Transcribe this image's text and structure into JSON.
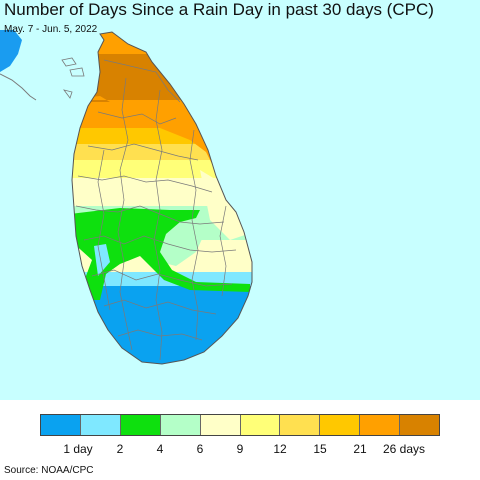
{
  "title": "Number of Days Since a Rain Day in past 30 days (CPC)",
  "subtitle": "May. 7 - Jun. 5, 2022",
  "source": "Source: NOAA/CPC",
  "map": {
    "ocean_color": "#c8ffff",
    "land_outside_color": "#1a9cf0",
    "boundary_color": "#7a7a7a"
  },
  "legend": {
    "colors": [
      "#0aa2f0",
      "#7fe8ff",
      "#0ee00e",
      "#b4ffc8",
      "#ffffc8",
      "#ffff78",
      "#ffe050",
      "#ffc800",
      "#ffa000",
      "#d88200"
    ],
    "labels": [
      "1 day",
      "2",
      "4",
      "6",
      "9",
      "12",
      "15",
      "21",
      "26 days"
    ]
  }
}
